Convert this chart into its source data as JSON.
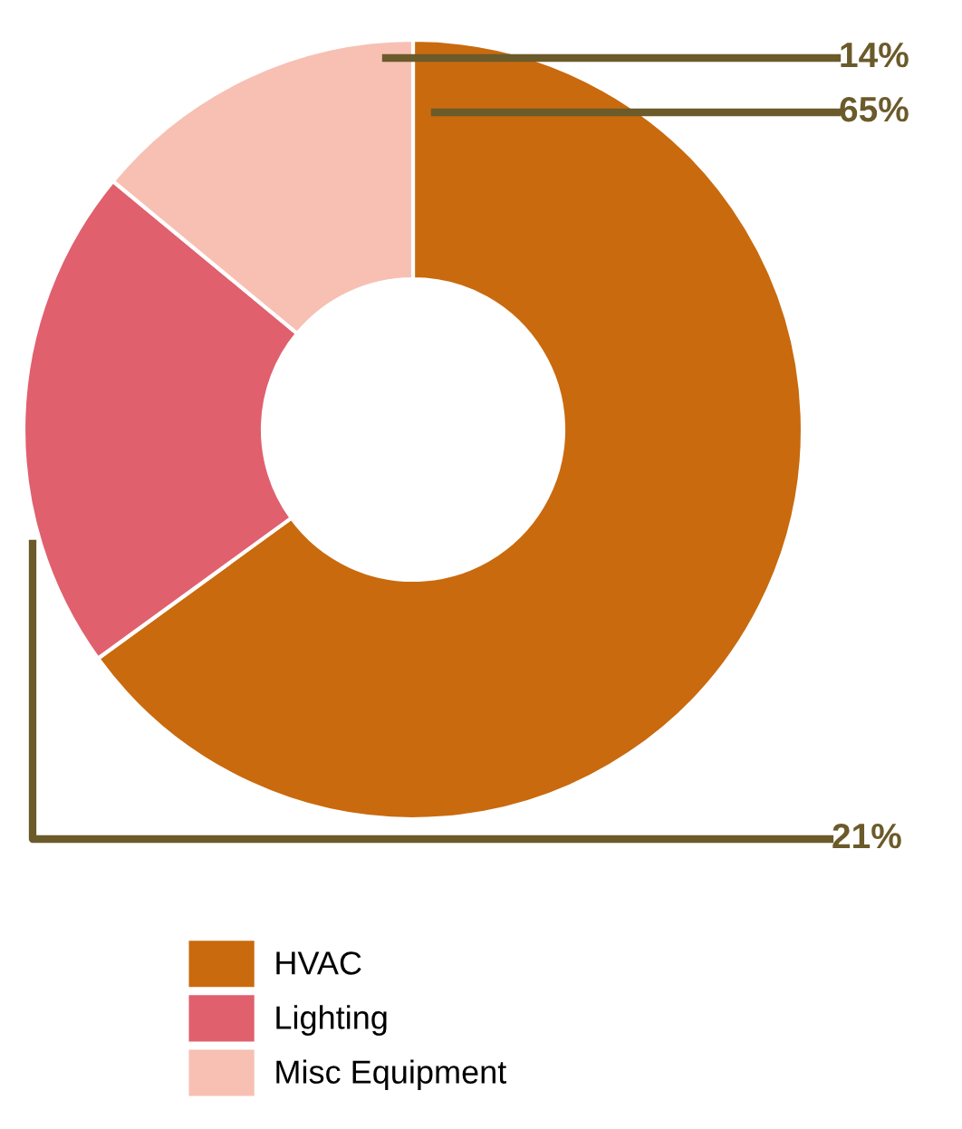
{
  "chart_data": {
    "type": "donut",
    "categories": [
      "HVAC",
      "Lighting",
      "Misc Equipment"
    ],
    "values": [
      65,
      21,
      14
    ],
    "colors": [
      "#c96a0e",
      "#e0606e",
      "#f7c0b3"
    ],
    "value_labels": [
      "65%",
      "21%",
      "14%"
    ],
    "legend": "bottom left"
  }
}
